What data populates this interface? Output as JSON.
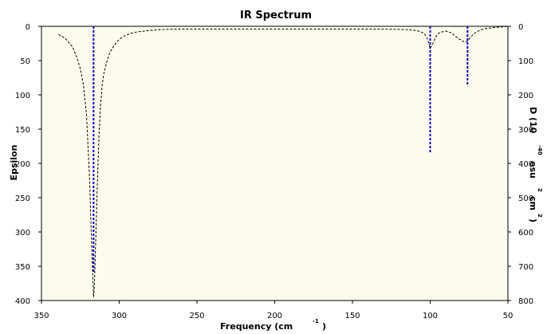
{
  "chart_data": {
    "type": "line",
    "title": "IR Spectrum",
    "xlabel": {
      "text": "Frequency (cm",
      "sup": "-1",
      "close": ")"
    },
    "ylabel_left": "Epsilon",
    "ylabel_right": {
      "parts": [
        "D (10",
        "-40",
        "esu",
        "2",
        "cm",
        "2",
        ")"
      ]
    },
    "xlim": [
      350,
      50
    ],
    "ylim_left": [
      0,
      400
    ],
    "ylim_right": [
      0,
      800
    ],
    "x_ticks": [
      350,
      300,
      250,
      200,
      150,
      100,
      50
    ],
    "y_left_ticks": [
      0,
      50,
      100,
      150,
      200,
      250,
      300,
      350,
      400
    ],
    "y_right_ticks": [
      0,
      100,
      200,
      300,
      400,
      500,
      600,
      700,
      800
    ],
    "grid": false,
    "colors": {
      "background": "#fcfbee",
      "spectrum": "#000000",
      "sticks": "#0000cc"
    },
    "spectrum": {
      "name": "Epsilon",
      "style": "dashed",
      "x": [
        339,
        335,
        330,
        327,
        325,
        323,
        321,
        319,
        318,
        317,
        316.5,
        316,
        315,
        314,
        313,
        312,
        311,
        310,
        308,
        306,
        303,
        300,
        296,
        292,
        288,
        284,
        280,
        275,
        270,
        260,
        250,
        200,
        150,
        130,
        120,
        113,
        108,
        104,
        102,
        100,
        98,
        96,
        94,
        90,
        86,
        84,
        82,
        80,
        78,
        76,
        74,
        72,
        70,
        66,
        60,
        55,
        51
      ],
      "y": [
        12,
        17,
        30,
        47,
        62,
        86,
        130,
        225,
        300,
        365,
        395,
        380,
        305,
        225,
        160,
        115,
        87,
        70,
        52,
        38,
        27,
        19,
        13,
        10,
        8,
        7,
        6,
        5,
        4.5,
        4,
        4,
        4,
        4,
        4.2,
        4.5,
        5,
        6.5,
        10,
        17,
        32,
        24,
        14,
        9,
        7,
        10,
        14,
        18,
        20,
        23,
        22,
        16,
        11,
        8,
        4,
        2,
        1,
        0.5
      ]
    },
    "sticks": {
      "name": "D",
      "x": [
        316.5,
        100,
        76
      ],
      "y": [
        720,
        370,
        175
      ]
    }
  }
}
